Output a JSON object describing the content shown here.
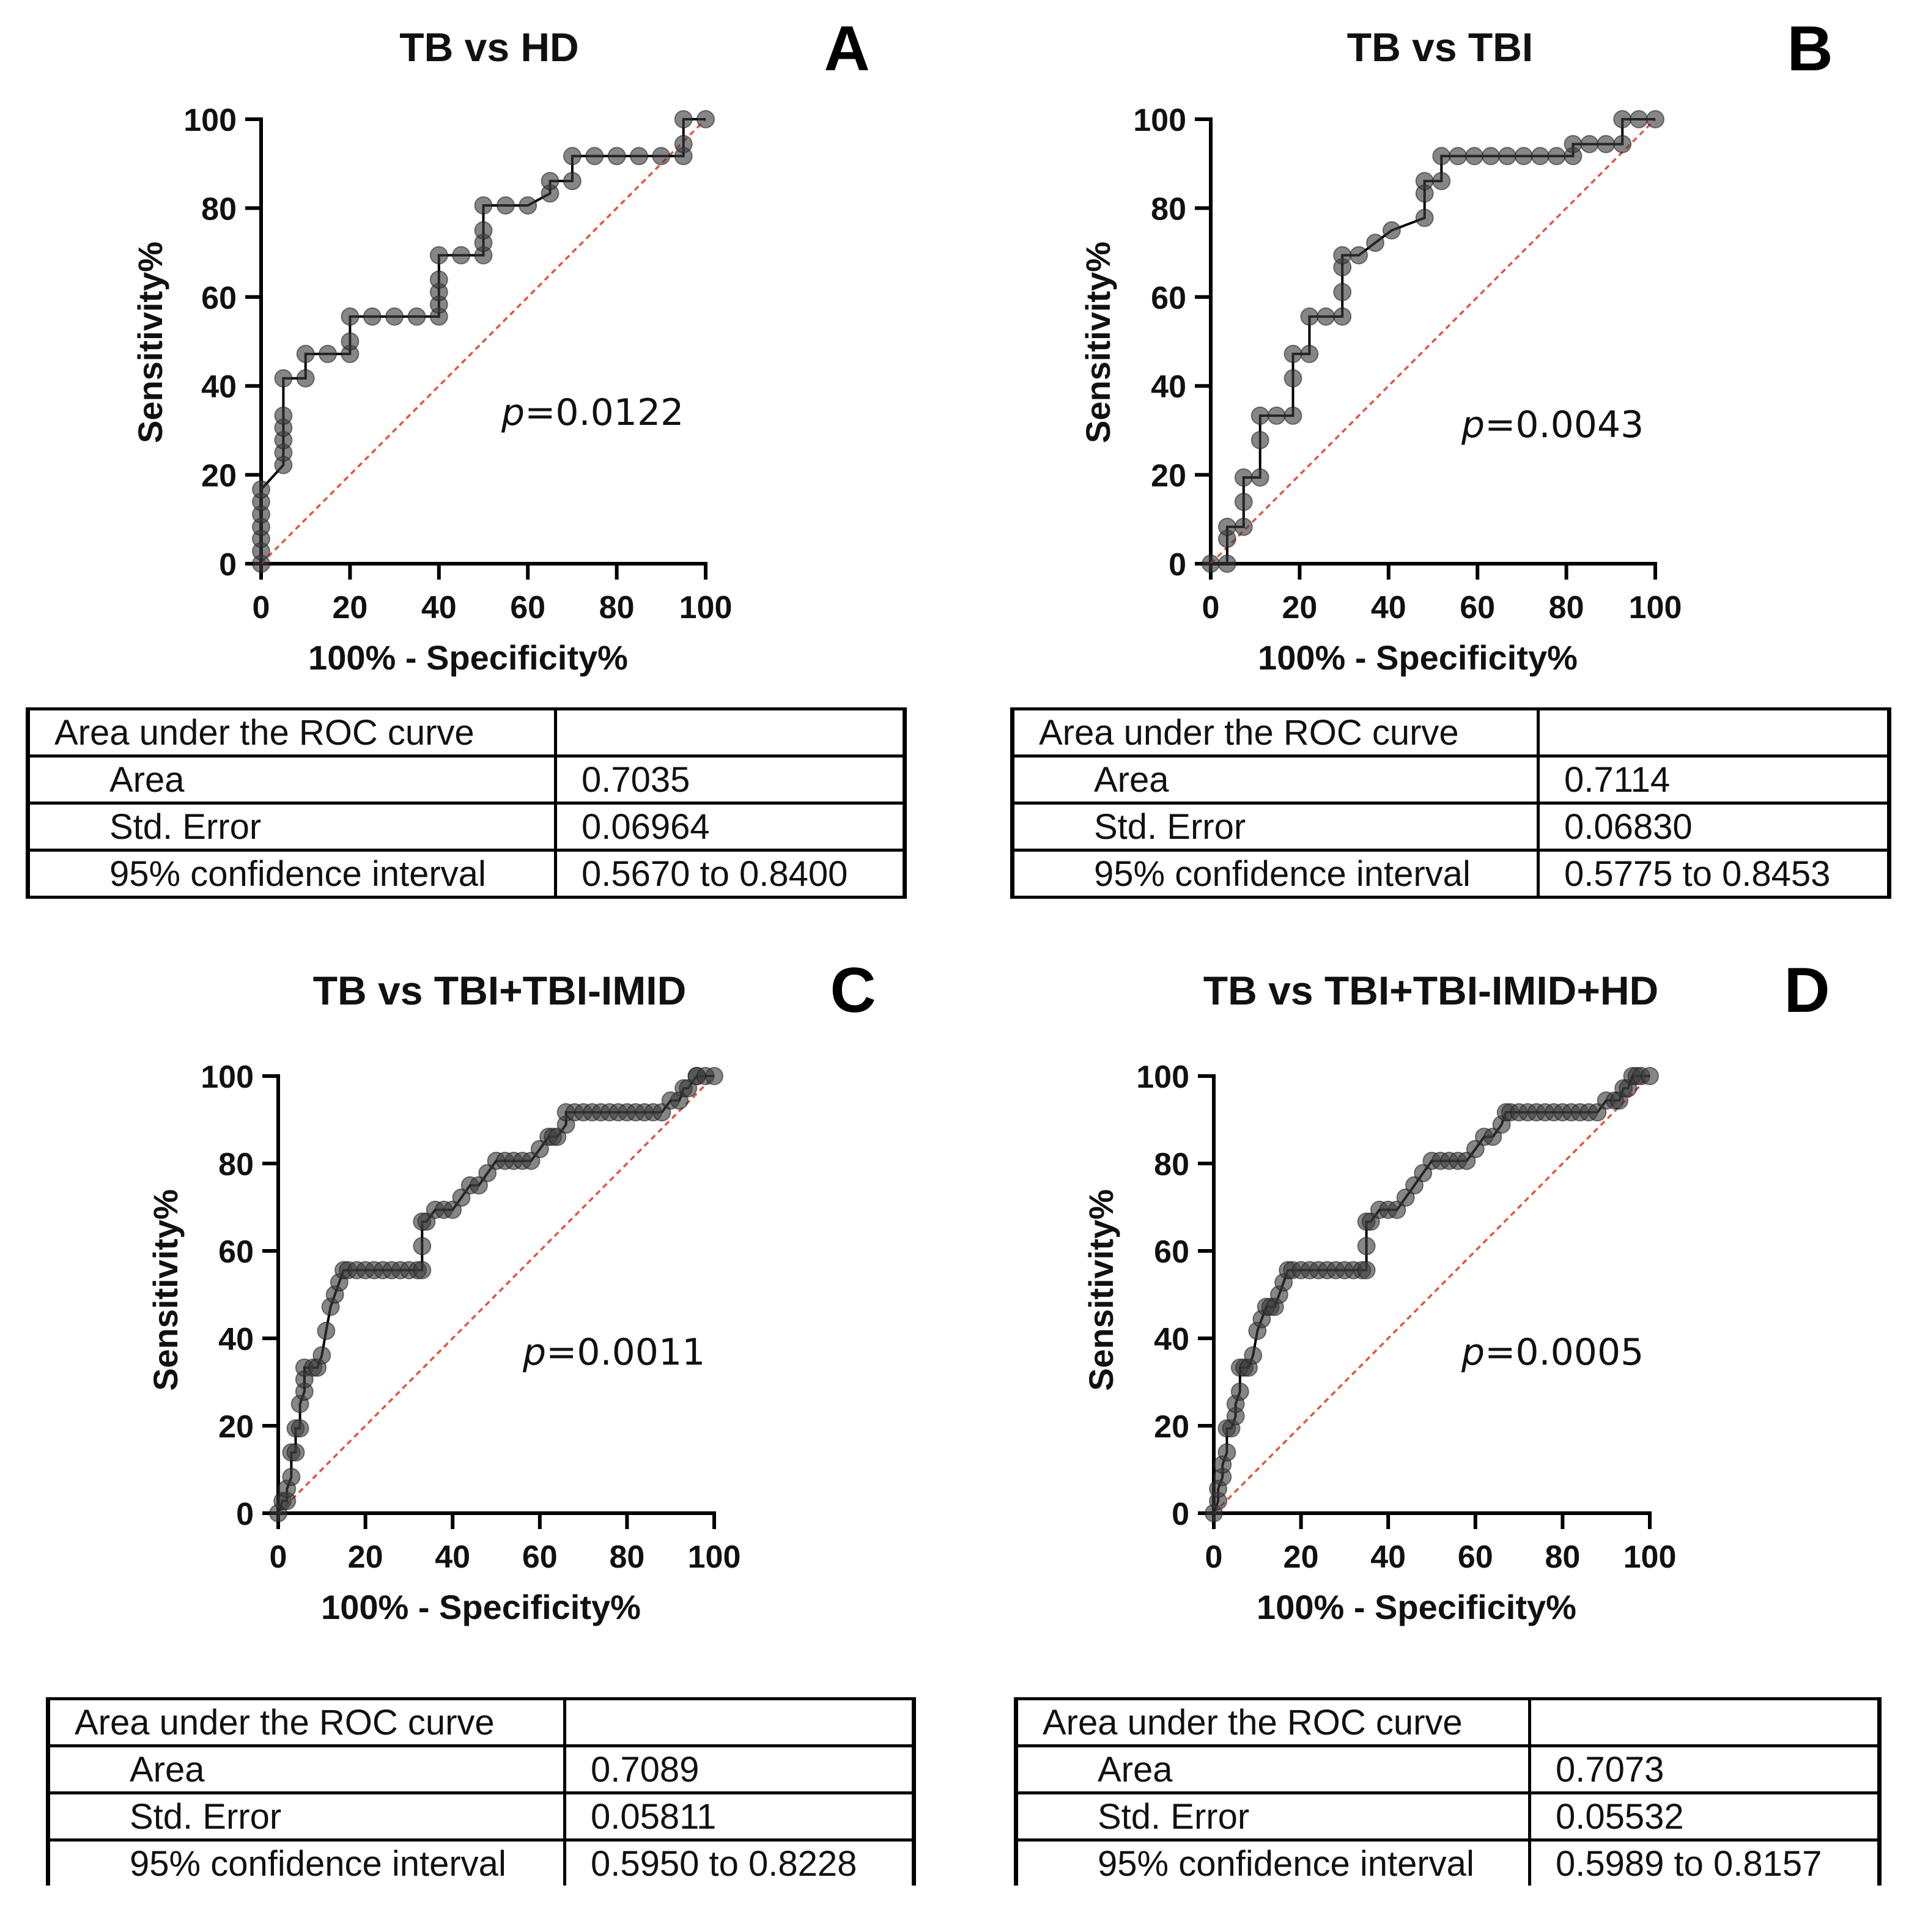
{
  "chart_data": [
    {
      "type": "line",
      "panel": "A",
      "title": "TB vs HD",
      "xlabel": "100% - Specificity%",
      "ylabel": "Sensitivity%",
      "xlim": [
        0,
        100
      ],
      "ylim": [
        0,
        100
      ],
      "xticks": [
        "0",
        "20",
        "40",
        "60",
        "80",
        "100"
      ],
      "yticks": [
        "0",
        "20",
        "40",
        "60",
        "80",
        "100"
      ],
      "p_label": "p",
      "p_value": "=0.0122",
      "series": [
        {
          "name": "ROC curve",
          "x": [
            0,
            0,
            0,
            0,
            0,
            0,
            0,
            5,
            5,
            5,
            5,
            5,
            5,
            10,
            10,
            15,
            20,
            20,
            20,
            25,
            30,
            35,
            40,
            40,
            40,
            40,
            40,
            45,
            50,
            50,
            50,
            50,
            55,
            60,
            65,
            65,
            70,
            70,
            75,
            80,
            85,
            90,
            95,
            95,
            95,
            100
          ],
          "y": [
            0,
            2.8,
            5.6,
            8.3,
            11.1,
            13.9,
            16.7,
            22.2,
            25,
            27.8,
            30.6,
            33.3,
            41.7,
            41.7,
            47.2,
            47.2,
            47.2,
            50,
            55.6,
            55.6,
            55.6,
            55.6,
            55.6,
            58.3,
            61.1,
            63.9,
            69.4,
            69.4,
            69.4,
            72.2,
            75,
            80.6,
            80.6,
            80.6,
            83.3,
            86.1,
            86.1,
            91.7,
            91.7,
            91.7,
            91.7,
            91.7,
            91.7,
            94.4,
            100,
            100
          ]
        },
        {
          "name": "Identity line",
          "x": [
            0,
            100
          ],
          "y": [
            0,
            100
          ]
        }
      ],
      "table": {
        "header": "Area under the ROC curve",
        "rows": [
          {
            "label": "Area",
            "value": "0.7035"
          },
          {
            "label": "Std. Error",
            "value": "0.06964"
          },
          {
            "label": "95% confidence interval",
            "value": "0.5670 to 0.8400"
          }
        ]
      }
    },
    {
      "type": "line",
      "panel": "B",
      "title": "TB vs TBI",
      "xlabel": "100% - Specificity%",
      "ylabel": "Sensitivity%",
      "xlim": [
        0,
        100
      ],
      "ylim": [
        0,
        100
      ],
      "xticks": [
        "0",
        "20",
        "40",
        "60",
        "80",
        "100"
      ],
      "yticks": [
        "0",
        "20",
        "40",
        "60",
        "80",
        "100"
      ],
      "p_label": "p",
      "p_value": "=0.0043",
      "series": [
        {
          "name": "ROC curve",
          "x": [
            0,
            3.7,
            3.7,
            3.7,
            7.4,
            7.4,
            7.4,
            11.1,
            11.1,
            11.1,
            14.8,
            18.5,
            18.5,
            18.5,
            22.2,
            22.2,
            25.9,
            29.6,
            29.6,
            29.6,
            29.6,
            33.3,
            37,
            40.7,
            48.1,
            48.1,
            48.1,
            51.9,
            51.9,
            55.6,
            59.3,
            63,
            66.7,
            70.4,
            74.1,
            77.8,
            81.5,
            81.5,
            85.2,
            88.9,
            92.6,
            92.6,
            96.3,
            100
          ],
          "y": [
            0,
            0,
            5.6,
            8.3,
            8.3,
            13.9,
            19.4,
            19.4,
            27.8,
            33.3,
            33.3,
            33.3,
            41.7,
            47.2,
            47.2,
            55.6,
            55.6,
            55.6,
            61.1,
            66.7,
            69.4,
            69.4,
            72.2,
            75,
            77.8,
            83.3,
            86.1,
            86.1,
            91.7,
            91.7,
            91.7,
            91.7,
            91.7,
            91.7,
            91.7,
            91.7,
            91.7,
            94.4,
            94.4,
            94.4,
            94.4,
            100,
            100,
            100
          ]
        },
        {
          "name": "Identity line",
          "x": [
            0,
            100
          ],
          "y": [
            0,
            100
          ]
        }
      ],
      "table": {
        "header": "Area under the ROC curve",
        "rows": [
          {
            "label": "Area",
            "value": "0.7114"
          },
          {
            "label": "Std. Error",
            "value": "0.06830"
          },
          {
            "label": "95% confidence interval",
            "value": "0.5775 to 0.8453"
          }
        ]
      }
    },
    {
      "type": "line",
      "panel": "C",
      "title": "TB vs TBI+TBI-IMID",
      "xlabel": "100% - Specificity%",
      "ylabel": "Sensitivity%",
      "xlim": [
        0,
        100
      ],
      "ylim": [
        0,
        100
      ],
      "xticks": [
        "0",
        "20",
        "40",
        "60",
        "80",
        "100"
      ],
      "yticks": [
        "0",
        "20",
        "40",
        "60",
        "80",
        "100"
      ],
      "p_label": "p",
      "p_value": "=0.0011",
      "series": [
        {
          "name": "ROC curve",
          "x": [
            0,
            1,
            2,
            2,
            3,
            3,
            4,
            4,
            5,
            5,
            6,
            6,
            6,
            8,
            9,
            10,
            11,
            12,
            13,
            14,
            15,
            16,
            18,
            20,
            22,
            24,
            26,
            28,
            30,
            32,
            33,
            33,
            33,
            34,
            36,
            38,
            40,
            42,
            44,
            46,
            48,
            50,
            52,
            54,
            56,
            58,
            60,
            62,
            63,
            64,
            66,
            66,
            68,
            70,
            72,
            74,
            76,
            78,
            80,
            82,
            84,
            86,
            88,
            90,
            92,
            93,
            94,
            96,
            96,
            98,
            100
          ],
          "y": [
            0,
            2.8,
            2.8,
            5.6,
            8.3,
            13.9,
            13.9,
            19.4,
            19.4,
            25,
            27.8,
            30.6,
            33.3,
            33.3,
            33.3,
            36.1,
            41.7,
            47.2,
            50,
            52.8,
            55.6,
            55.6,
            55.6,
            55.6,
            55.6,
            55.6,
            55.6,
            55.6,
            55.6,
            55.6,
            55.6,
            61.1,
            66.7,
            66.7,
            69.4,
            69.4,
            69.4,
            72.2,
            75,
            75,
            77.8,
            80.6,
            80.6,
            80.6,
            80.6,
            80.6,
            83.3,
            86.1,
            86.1,
            86.1,
            88.9,
            91.7,
            91.7,
            91.7,
            91.7,
            91.7,
            91.7,
            91.7,
            91.7,
            91.7,
            91.7,
            91.7,
            91.7,
            94.4,
            94.4,
            97.2,
            97.2,
            100,
            100,
            100,
            100
          ]
        },
        {
          "name": "Identity line",
          "x": [
            0,
            100
          ],
          "y": [
            0,
            100
          ]
        }
      ],
      "table": {
        "header": "Area under the ROC curve",
        "rows": [
          {
            "label": "Area",
            "value": "0.7089"
          },
          {
            "label": "Std. Error",
            "value": "0.05811"
          },
          {
            "label": "95% confidence interval",
            "value": "0.5950 to 0.8228"
          }
        ]
      }
    },
    {
      "type": "line",
      "panel": "D",
      "title": "TB vs TBI+TBI-IMID+HD",
      "xlabel": "100% - Specificity%",
      "ylabel": "Sensitivity%",
      "xlim": [
        0,
        100
      ],
      "ylim": [
        0,
        100
      ],
      "xticks": [
        "0",
        "20",
        "40",
        "60",
        "80",
        "100"
      ],
      "yticks": [
        "0",
        "20",
        "40",
        "60",
        "80",
        "100"
      ],
      "p_label": "p",
      "p_value": "=0.0005",
      "series": [
        {
          "name": "ROC curve",
          "x": [
            0,
            1,
            1,
            2,
            2,
            3,
            3,
            4,
            5,
            5,
            6,
            6,
            7,
            8,
            9,
            10,
            11,
            12,
            13,
            14,
            15,
            16,
            17,
            18,
            20,
            22,
            24,
            26,
            28,
            30,
            32,
            34,
            35,
            35,
            35,
            36,
            38,
            40,
            42,
            44,
            46,
            48,
            50,
            52,
            54,
            56,
            58,
            60,
            62,
            64,
            66,
            67,
            68,
            70,
            72,
            74,
            76,
            78,
            80,
            82,
            84,
            86,
            88,
            90,
            92,
            93,
            94,
            95,
            96,
            97,
            98,
            100
          ],
          "y": [
            0,
            2.8,
            5.6,
            8.3,
            11.1,
            13.9,
            19.4,
            19.4,
            22.2,
            25,
            27.8,
            33.3,
            33.3,
            33.3,
            36.1,
            41.7,
            44.4,
            47.2,
            47.2,
            47.2,
            50,
            52.8,
            55.6,
            55.6,
            55.6,
            55.6,
            55.6,
            55.6,
            55.6,
            55.6,
            55.6,
            55.6,
            55.6,
            61.1,
            66.7,
            66.7,
            69.4,
            69.4,
            69.4,
            72.2,
            75,
            77.8,
            80.6,
            80.6,
            80.6,
            80.6,
            80.6,
            83.3,
            86.1,
            86.1,
            88.9,
            91.7,
            91.7,
            91.7,
            91.7,
            91.7,
            91.7,
            91.7,
            91.7,
            91.7,
            91.7,
            91.7,
            91.7,
            94.4,
            94.4,
            94.4,
            97.2,
            97.2,
            100,
            100,
            100,
            100
          ]
        },
        {
          "name": "Identity line",
          "x": [
            0,
            100
          ],
          "y": [
            0,
            100
          ]
        }
      ],
      "table": {
        "header": "Area under the ROC curve",
        "rows": [
          {
            "label": "Area",
            "value": "0.7073"
          },
          {
            "label": "Std. Error",
            "value": "0.05532"
          },
          {
            "label": "95% confidence interval",
            "value": "0.5989 to 0.8157"
          }
        ]
      }
    }
  ]
}
